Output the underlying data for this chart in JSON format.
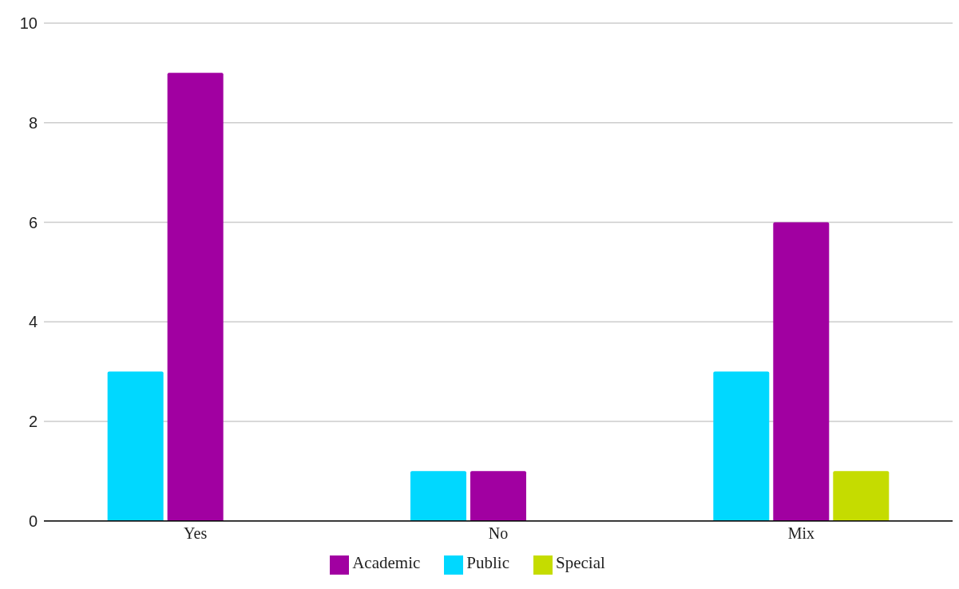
{
  "chart_data": {
    "type": "bar",
    "categories": [
      "Yes",
      "No",
      "Mix"
    ],
    "series": [
      {
        "name": "Public",
        "color": "#00d8ff",
        "values": [
          3,
          1,
          3
        ]
      },
      {
        "name": "Academic",
        "color": "#a100a1",
        "values": [
          9,
          1,
          6
        ]
      },
      {
        "name": "Special",
        "color": "#c5dc00",
        "values": [
          null,
          null,
          1
        ]
      }
    ],
    "ylim": [
      0,
      10
    ],
    "yticks": [
      0,
      2,
      4,
      6,
      8,
      10
    ],
    "grid": "y",
    "legend": "bottom"
  }
}
